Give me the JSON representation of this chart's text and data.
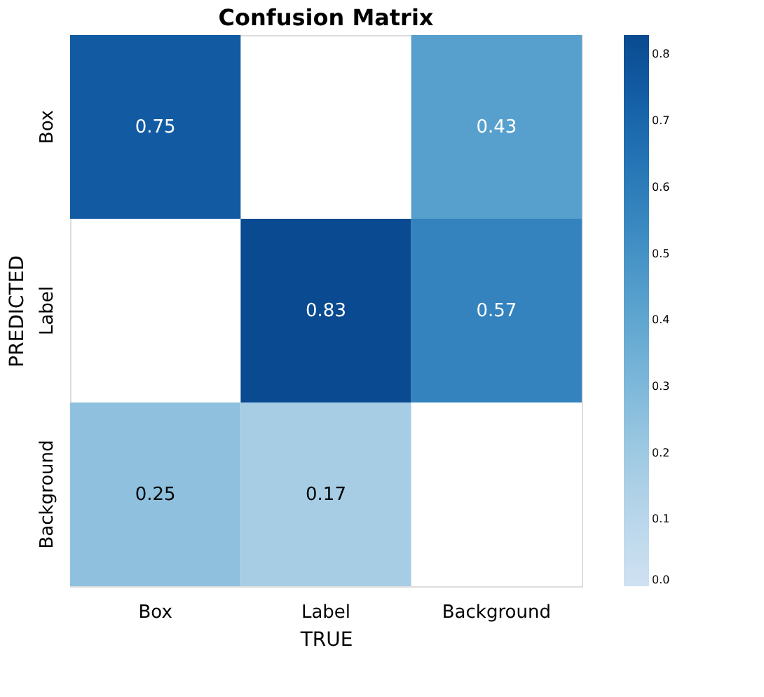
{
  "chart_data": {
    "type": "heatmap",
    "title": "Confusion Matrix",
    "xlabel": "TRUE",
    "ylabel": "PREDICTED",
    "categories": [
      "Box",
      "Label",
      "Background"
    ],
    "y_categories": [
      "Box",
      "Label",
      "Background"
    ],
    "cells": [
      [
        0.75,
        null,
        0.43
      ],
      [
        null,
        0.83,
        0.57
      ],
      [
        0.25,
        0.17,
        null
      ]
    ],
    "data_labels": true,
    "clim": [
      0,
      0.83
    ],
    "cticks": [
      {
        "value": 0,
        "label": "0.0"
      },
      0.1,
      0.2,
      0.3,
      0.4,
      0.5,
      0.6,
      0.7,
      0.8
    ]
  }
}
